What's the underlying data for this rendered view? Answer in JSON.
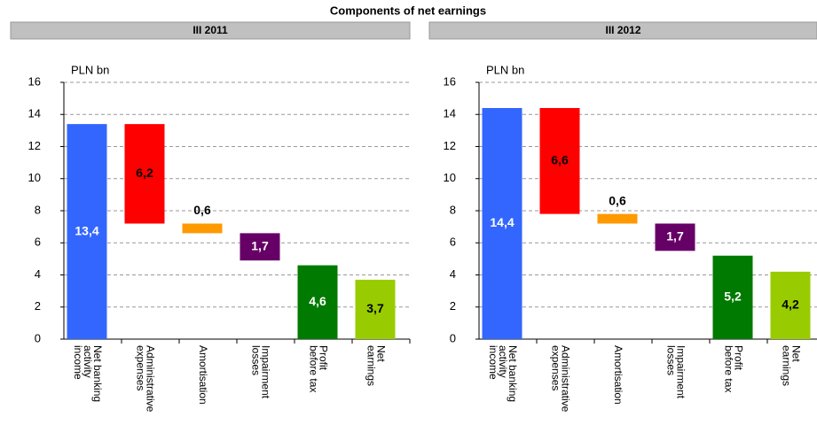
{
  "title": "Components of net earnings",
  "chart_data": [
    {
      "type": "waterfall",
      "subtitle": "III 2011",
      "ylabel": "PLN bn",
      "categories": [
        [
          "Net banking",
          "activity",
          "income"
        ],
        [
          "Administrative",
          "expenses"
        ],
        [
          "Amortisation"
        ],
        [
          "Impairment",
          "losses"
        ],
        [
          "Profit",
          "before tax"
        ],
        [
          "Net",
          "earnings"
        ]
      ],
      "values": [
        13.4,
        6.2,
        0.6,
        1.7,
        4.6,
        3.7
      ],
      "value_labels": [
        "13,4",
        "6,2",
        "0,6",
        "1,7",
        "4,6",
        "3,7"
      ],
      "measure": [
        "total",
        "decrease",
        "decrease",
        "decrease",
        "total",
        "total"
      ],
      "colors": [
        "#3366ff",
        "#ff0000",
        "#ff9900",
        "#660066",
        "#007a00",
        "#99cc00"
      ],
      "label_colors": [
        "#ffffff",
        "#000000",
        "#000000",
        "#ffffff",
        "#ffffff",
        "#000000"
      ],
      "ylim": [
        0,
        16
      ],
      "yticks": [
        0,
        2,
        4,
        6,
        8,
        10,
        12,
        14,
        16
      ],
      "grid": true
    },
    {
      "type": "waterfall",
      "subtitle": "III 2012",
      "ylabel": "PLN bn",
      "categories": [
        [
          "Net banking",
          "activity",
          "income"
        ],
        [
          "Administrative",
          "expenses"
        ],
        [
          "Amortisation"
        ],
        [
          "Impairment",
          "losses"
        ],
        [
          "Profit",
          "before tax"
        ],
        [
          "Net",
          "earnings"
        ]
      ],
      "values": [
        14.4,
        6.6,
        0.6,
        1.7,
        5.2,
        4.2
      ],
      "value_labels": [
        "14,4",
        "6,6",
        "0,6",
        "1,7",
        "5,2",
        "4,2"
      ],
      "measure": [
        "total",
        "decrease",
        "decrease",
        "decrease",
        "total",
        "total"
      ],
      "colors": [
        "#3366ff",
        "#ff0000",
        "#ff9900",
        "#660066",
        "#007a00",
        "#99cc00"
      ],
      "label_colors": [
        "#ffffff",
        "#000000",
        "#000000",
        "#ffffff",
        "#ffffff",
        "#000000"
      ],
      "ylim": [
        0,
        16
      ],
      "yticks": [
        0,
        2,
        4,
        6,
        8,
        10,
        12,
        14,
        16
      ],
      "grid": true
    }
  ]
}
